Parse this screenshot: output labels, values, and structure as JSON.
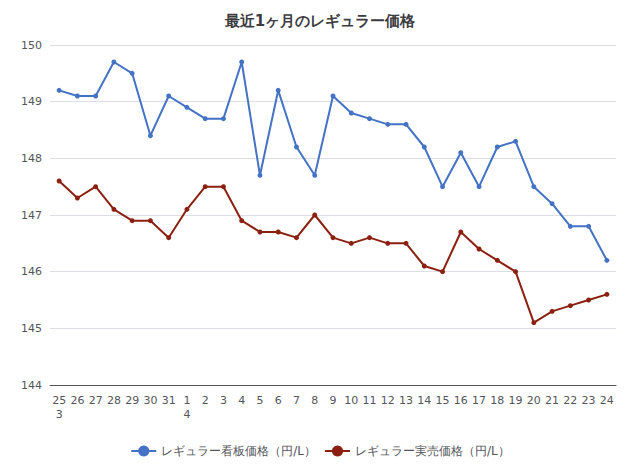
{
  "chart_data": {
    "type": "line",
    "title": "最近1ヶ月のレギュラー価格",
    "categories": [
      "25\n3",
      "26",
      "27",
      "28",
      "29",
      "30",
      "31",
      "1\n4",
      "2",
      "3",
      "4",
      "5",
      "6",
      "7",
      "8",
      "9",
      "10",
      "11",
      "12",
      "13",
      "14",
      "15",
      "16",
      "17",
      "18",
      "19",
      "20",
      "21",
      "22",
      "23",
      "24"
    ],
    "series": [
      {
        "name": "レギュラー看板価格（円/L）",
        "color": "#4472c4",
        "marker": "circle",
        "values": [
          149.2,
          149.1,
          149.1,
          149.7,
          149.5,
          148.4,
          149.1,
          148.9,
          148.7,
          148.7,
          149.7,
          147.7,
          149.2,
          148.2,
          147.7,
          149.1,
          148.8,
          148.7,
          148.6,
          148.6,
          148.2,
          147.5,
          148.1,
          147.5,
          148.2,
          148.3,
          147.5,
          147.2,
          146.8,
          146.8,
          146.2
        ]
      },
      {
        "name": "レギュラー実売価格（円/L）",
        "color": "#8b2010",
        "marker": "circle",
        "values": [
          147.6,
          147.3,
          147.5,
          147.1,
          146.9,
          146.9,
          146.6,
          147.1,
          147.5,
          147.5,
          146.9,
          146.7,
          146.7,
          146.6,
          147.0,
          146.6,
          146.5,
          146.6,
          146.5,
          146.5,
          146.1,
          146.0,
          146.7,
          146.4,
          146.2,
          146.0,
          145.1,
          145.3,
          145.4,
          145.5,
          145.6
        ]
      }
    ],
    "ylim": [
      144,
      150
    ],
    "yticks": [
      144,
      145,
      146,
      147,
      148,
      149,
      150
    ],
    "grid": true,
    "legend": "bottom"
  }
}
